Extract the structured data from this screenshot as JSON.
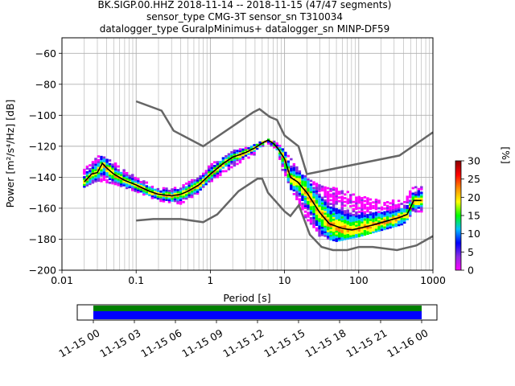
{
  "chart_data": {
    "type": "heatmap",
    "title_lines": [
      "BK.SIGP.00.HHZ   2018-11-14 -- 2018-11-15  (47/47 segments)",
      "sensor_type CMG-3T sensor_sn T310034",
      "datalogger_type GuralpMinimus+ datalogger_sn MINP-DF59"
    ],
    "xlabel": "Period [s]",
    "ylabel": "Power [m²/s⁴/Hz] [dB]",
    "xscale": "log",
    "xlim": [
      0.01,
      1000
    ],
    "ylim": [
      -200,
      -50
    ],
    "grid": true,
    "x_ticks": [
      {
        "value": 0.01,
        "label": "0.01"
      },
      {
        "value": 0.1,
        "label": "0.1"
      },
      {
        "value": 1,
        "label": "1"
      },
      {
        "value": 10,
        "label": "10"
      },
      {
        "value": 100,
        "label": "100"
      },
      {
        "value": 1000,
        "label": "1000"
      }
    ],
    "y_ticks": [
      {
        "value": -60,
        "label": "−60"
      },
      {
        "value": -80,
        "label": "−80"
      },
      {
        "value": -100,
        "label": "−100"
      },
      {
        "value": -120,
        "label": "−120"
      },
      {
        "value": -140,
        "label": "−140"
      },
      {
        "value": -160,
        "label": "−160"
      },
      {
        "value": -180,
        "label": "−180"
      },
      {
        "value": -200,
        "label": "−200"
      }
    ],
    "noise_model_high": [
      [
        0.1,
        -91
      ],
      [
        0.22,
        -97
      ],
      [
        0.32,
        -110
      ],
      [
        0.8,
        -120
      ],
      [
        3.8,
        -98
      ],
      [
        4.6,
        -96
      ],
      [
        6.3,
        -101
      ],
      [
        7.9,
        -103
      ],
      [
        10,
        -113
      ],
      [
        15.4,
        -120
      ],
      [
        20,
        -138
      ],
      [
        354,
        -126
      ],
      [
        1000,
        -111
      ]
    ],
    "noise_model_low": [
      [
        0.1,
        -168
      ],
      [
        0.17,
        -167
      ],
      [
        0.4,
        -167
      ],
      [
        0.8,
        -169
      ],
      [
        1.24,
        -164
      ],
      [
        2.4,
        -149
      ],
      [
        4.3,
        -141
      ],
      [
        5.0,
        -141
      ],
      [
        6.0,
        -150
      ],
      [
        10,
        -162
      ],
      [
        12,
        -165
      ],
      [
        15.6,
        -158
      ],
      [
        21.9,
        -177
      ],
      [
        31.6,
        -185
      ],
      [
        45,
        -187
      ],
      [
        70,
        -187
      ],
      [
        101,
        -185
      ],
      [
        154,
        -185
      ],
      [
        328,
        -187
      ],
      [
        600,
        -184
      ],
      [
        1000,
        -178
      ]
    ],
    "mode_curve": [
      [
        0.02,
        -143
      ],
      [
        0.025,
        -138
      ],
      [
        0.03,
        -137
      ],
      [
        0.035,
        -131
      ],
      [
        0.04,
        -134
      ],
      [
        0.05,
        -138
      ],
      [
        0.07,
        -142
      ],
      [
        0.1,
        -145
      ],
      [
        0.15,
        -149
      ],
      [
        0.2,
        -151
      ],
      [
        0.3,
        -152
      ],
      [
        0.4,
        -151
      ],
      [
        0.5,
        -149
      ],
      [
        0.7,
        -145
      ],
      [
        1.0,
        -138
      ],
      [
        1.5,
        -131
      ],
      [
        2,
        -127
      ],
      [
        3,
        -124
      ],
      [
        4,
        -121
      ],
      [
        5,
        -118
      ],
      [
        6,
        -116
      ],
      [
        7,
        -118
      ],
      [
        8,
        -121
      ],
      [
        10,
        -128
      ],
      [
        12,
        -140
      ],
      [
        15,
        -143
      ],
      [
        20,
        -150
      ],
      [
        30,
        -163
      ],
      [
        40,
        -170
      ],
      [
        60,
        -173
      ],
      [
        80,
        -174
      ],
      [
        100,
        -173
      ],
      [
        150,
        -171
      ],
      [
        250,
        -168
      ],
      [
        350,
        -166
      ],
      [
        450,
        -164
      ],
      [
        550,
        -155
      ],
      [
        700,
        -155
      ]
    ],
    "density_upper": [
      [
        0.02,
        -135
      ],
      [
        0.03,
        -126
      ],
      [
        0.04,
        -127
      ],
      [
        0.06,
        -133
      ],
      [
        0.1,
        -140
      ],
      [
        0.2,
        -147
      ],
      [
        0.4,
        -146
      ],
      [
        0.7,
        -138
      ],
      [
        1,
        -132
      ],
      [
        2,
        -123
      ],
      [
        4,
        -119
      ],
      [
        6,
        -115
      ],
      [
        8,
        -118
      ],
      [
        10,
        -122
      ],
      [
        12,
        -126
      ],
      [
        15,
        -134
      ],
      [
        20,
        -140
      ],
      [
        30,
        -145
      ],
      [
        60,
        -148
      ],
      [
        100,
        -152
      ],
      [
        200,
        -155
      ],
      [
        400,
        -155
      ],
      [
        550,
        -146
      ],
      [
        700,
        -146
      ]
    ],
    "density_lower": [
      [
        0.02,
        -146
      ],
      [
        0.03,
        -142
      ],
      [
        0.05,
        -144
      ],
      [
        0.1,
        -149
      ],
      [
        0.2,
        -155
      ],
      [
        0.4,
        -157
      ],
      [
        0.7,
        -150
      ],
      [
        1,
        -143
      ],
      [
        2,
        -133
      ],
      [
        4,
        -125
      ],
      [
        6,
        -118
      ],
      [
        8,
        -122
      ],
      [
        10,
        -140
      ],
      [
        15,
        -155
      ],
      [
        20,
        -168
      ],
      [
        30,
        -178
      ],
      [
        50,
        -181
      ],
      [
        100,
        -178
      ],
      [
        200,
        -174
      ],
      [
        400,
        -170
      ],
      [
        550,
        -162
      ],
      [
        700,
        -162
      ]
    ],
    "colorbar": {
      "label": "[%]",
      "range": [
        0,
        30
      ],
      "ticks": [
        {
          "value": 0,
          "label": "0"
        },
        {
          "value": 5,
          "label": "5"
        },
        {
          "value": 10,
          "label": "10"
        },
        {
          "value": 15,
          "label": "15"
        },
        {
          "value": 20,
          "label": "20"
        },
        {
          "value": 25,
          "label": "25"
        },
        {
          "value": 30,
          "label": "30"
        }
      ],
      "colors": [
        "#ff00ff",
        "#8a2be2",
        "#0000ff",
        "#00bfff",
        "#00ff00",
        "#ffff00",
        "#ff8c00",
        "#ff0000",
        "#8b0000"
      ]
    },
    "timeline": {
      "ticks": [
        "11-15 00",
        "11-15 03",
        "11-15 06",
        "11-15 09",
        "11-15 12",
        "11-15 15",
        "11-15 18",
        "11-15 21",
        "11-16 00"
      ],
      "bar_colors": {
        "upper": "#008000",
        "lower": "#0000ff"
      }
    }
  }
}
